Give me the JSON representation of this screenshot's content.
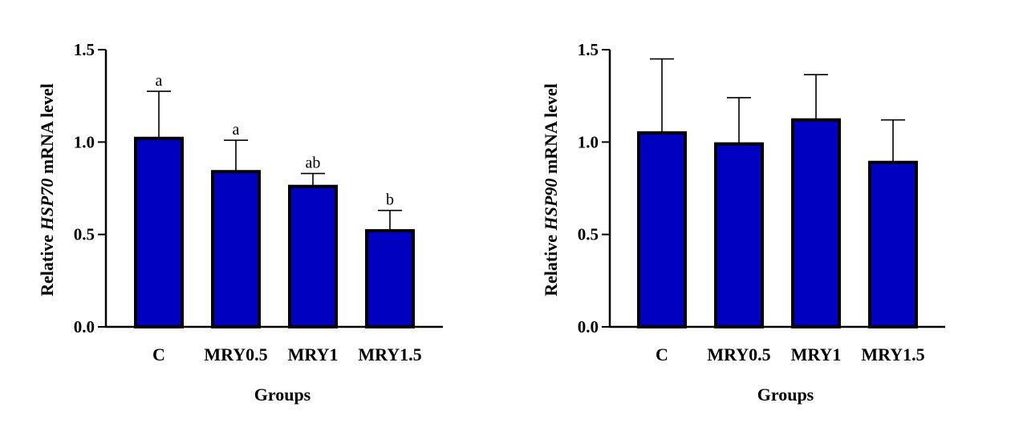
{
  "chart_data": [
    {
      "type": "bar",
      "categories": [
        "C",
        "MRY0.5",
        "MRY1",
        "MRY1.5"
      ],
      "values": [
        1.02,
        0.84,
        0.76,
        0.52
      ],
      "error_upper": [
        1.275,
        1.01,
        0.83,
        0.63
      ],
      "significance_letters": [
        "a",
        "a",
        "ab",
        "b"
      ],
      "ylabel_prefix": "Relative ",
      "ylabel_gene": "HSP70",
      "ylabel_suffix": " mRNA level",
      "xlabel": "Groups",
      "ylim": [
        0,
        1.5
      ],
      "yticks": [
        "0.0",
        "0.5",
        "1.0",
        "1.5"
      ],
      "bar_color": "#0000C0"
    },
    {
      "type": "bar",
      "categories": [
        "C",
        "MRY0.5",
        "MRY1",
        "MRY1.5"
      ],
      "values": [
        1.05,
        0.99,
        1.12,
        0.89
      ],
      "error_upper": [
        1.45,
        1.24,
        1.365,
        1.12
      ],
      "significance_letters": [],
      "ylabel_prefix": "Relative ",
      "ylabel_gene": "HSP90",
      "ylabel_suffix": " mRNA level",
      "xlabel": "Groups",
      "ylim": [
        0,
        1.5
      ],
      "yticks": [
        "0.0",
        "0.5",
        "1.0",
        "1.5"
      ],
      "bar_color": "#0000C0"
    }
  ]
}
